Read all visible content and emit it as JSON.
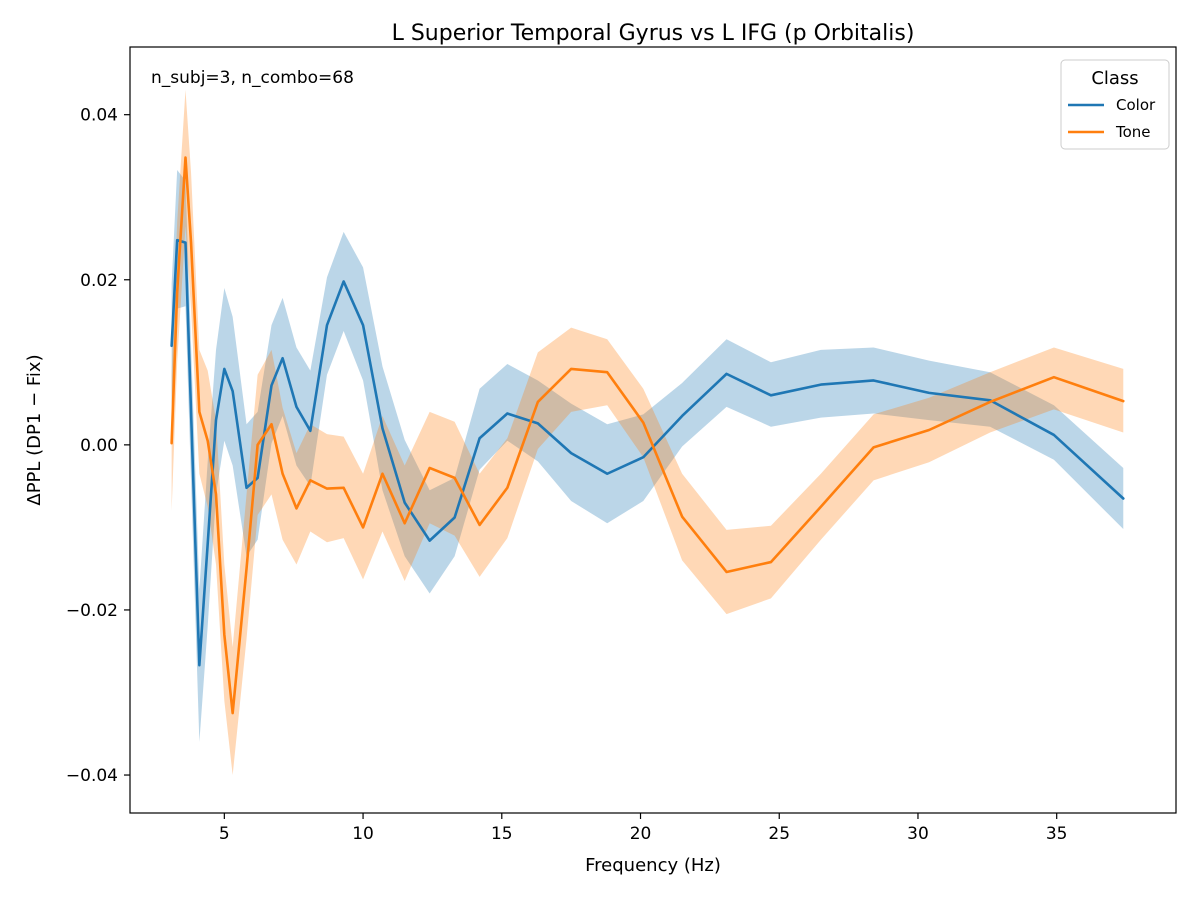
{
  "chart_data": {
    "type": "line",
    "title": "L Superior Temporal Gyrus vs L IFG (p Orbitalis)",
    "xlabel": "Frequency (Hz)",
    "ylabel": "ΔPPL (DP1 − Fix)",
    "xlim": [
      1.6,
      39.3
    ],
    "ylim": [
      -0.0446,
      0.0482
    ],
    "xticks": [
      5,
      10,
      15,
      20,
      25,
      30,
      35
    ],
    "xtick_labels": [
      "5",
      "10",
      "15",
      "20",
      "25",
      "30",
      "35"
    ],
    "yticks": [
      -0.04,
      -0.02,
      0.0,
      0.02,
      0.04
    ],
    "ytick_labels": [
      "−0.04",
      "−0.02",
      "0.00",
      "0.02",
      "0.04"
    ],
    "annotation": "n_subj=3, n_combo=68",
    "legend": {
      "title": "Class",
      "position": "top-right"
    },
    "series": [
      {
        "name": "Color",
        "color": "#1f77b4",
        "band_color": "#1f77b4",
        "band_opacity": 0.3,
        "x": [
          3.1,
          3.3,
          3.6,
          4.1,
          4.4,
          4.7,
          5.0,
          5.3,
          5.8,
          6.2,
          6.7,
          7.1,
          7.6,
          8.1,
          8.7,
          9.3,
          10.0,
          10.7,
          11.5,
          12.4,
          13.3,
          14.2,
          15.2,
          16.3,
          17.5,
          18.8,
          20.1,
          21.5,
          23.1,
          24.7,
          26.5,
          28.4,
          30.4,
          32.6,
          34.9,
          37.4
        ],
        "y": [
          0.012,
          0.0248,
          0.0245,
          -0.0267,
          -0.012,
          0.003,
          0.0092,
          0.0065,
          -0.0052,
          -0.004,
          0.0072,
          0.0105,
          0.0046,
          0.0017,
          0.0145,
          0.0198,
          0.0145,
          0.002,
          -0.007,
          -0.0116,
          -0.0088,
          0.0008,
          0.0038,
          0.0026,
          -0.001,
          -0.0035,
          -0.0015,
          0.0035,
          0.0086,
          0.006,
          0.0073,
          0.0078,
          0.0063,
          0.0054,
          0.0012,
          -0.0065
        ],
        "lower": [
          0.0045,
          0.0165,
          0.0168,
          -0.036,
          -0.022,
          -0.006,
          0.0005,
          -0.0025,
          -0.0135,
          -0.0115,
          0.0002,
          0.0035,
          -0.0025,
          -0.005,
          0.0085,
          0.0138,
          0.0078,
          -0.0055,
          -0.0135,
          -0.018,
          -0.0135,
          -0.003,
          0.0005,
          -0.002,
          -0.0068,
          -0.0095,
          -0.0068,
          -0.0002,
          0.0046,
          0.0022,
          0.0033,
          0.0038,
          0.003,
          0.0022,
          -0.0018,
          -0.0102
        ],
        "upper": [
          0.0195,
          0.0333,
          0.032,
          -0.0175,
          -0.002,
          0.0115,
          0.019,
          0.0155,
          0.0025,
          0.004,
          0.0145,
          0.0178,
          0.0118,
          0.009,
          0.0203,
          0.0258,
          0.0215,
          0.0095,
          0.0006,
          -0.0055,
          -0.004,
          0.0068,
          0.0098,
          0.0078,
          0.005,
          0.0025,
          0.0037,
          0.0075,
          0.0128,
          0.01,
          0.0115,
          0.0118,
          0.0102,
          0.0088,
          0.0048,
          -0.0028
        ]
      },
      {
        "name": "Tone",
        "color": "#ff7f0e",
        "band_color": "#ff7f0e",
        "band_opacity": 0.3,
        "x": [
          3.1,
          3.3,
          3.6,
          3.8,
          4.1,
          4.4,
          4.7,
          5.0,
          5.3,
          5.8,
          6.2,
          6.7,
          7.1,
          7.6,
          8.1,
          8.7,
          9.3,
          10.0,
          10.7,
          11.5,
          12.4,
          13.3,
          14.2,
          15.2,
          16.3,
          17.5,
          18.8,
          20.1,
          21.5,
          23.1,
          24.7,
          26.5,
          28.4,
          30.4,
          32.6,
          34.9,
          37.4
        ],
        "y": [
          0.0002,
          0.0185,
          0.0348,
          0.0245,
          0.004,
          0.0005,
          -0.006,
          -0.023,
          -0.0325,
          -0.015,
          0.0,
          0.0025,
          -0.0035,
          -0.0077,
          -0.0043,
          -0.0053,
          -0.0052,
          -0.01,
          -0.0035,
          -0.0095,
          -0.0028,
          -0.004,
          -0.0097,
          -0.0052,
          0.0052,
          0.0092,
          0.0088,
          0.0027,
          -0.0087,
          -0.0154,
          -0.0142,
          -0.0075,
          -0.0003,
          0.0018,
          0.0052,
          0.0082,
          0.0053
        ],
        "lower": [
          -0.008,
          0.01,
          0.0265,
          0.0165,
          -0.0035,
          -0.0075,
          -0.0145,
          -0.031,
          -0.04,
          -0.0235,
          -0.0085,
          -0.006,
          -0.0115,
          -0.0145,
          -0.0105,
          -0.0118,
          -0.0113,
          -0.0163,
          -0.0105,
          -0.0165,
          -0.0095,
          -0.011,
          -0.016,
          -0.0113,
          -0.0005,
          0.004,
          0.0048,
          -0.0015,
          -0.014,
          -0.0205,
          -0.0186,
          -0.0115,
          -0.0043,
          -0.0021,
          0.0015,
          0.0043,
          0.0015
        ],
        "upper": [
          0.0085,
          0.027,
          0.043,
          0.033,
          0.0115,
          0.009,
          0.003,
          -0.0145,
          -0.0245,
          -0.006,
          0.0085,
          0.0115,
          0.0045,
          -0.001,
          0.0025,
          0.0013,
          0.001,
          -0.0035,
          0.0035,
          -0.0025,
          0.004,
          0.0028,
          -0.0035,
          0.0008,
          0.0112,
          0.0142,
          0.0128,
          0.0068,
          -0.0035,
          -0.0103,
          -0.0098,
          -0.0035,
          0.0037,
          0.0057,
          0.0088,
          0.0118,
          0.0092
        ]
      }
    ]
  }
}
